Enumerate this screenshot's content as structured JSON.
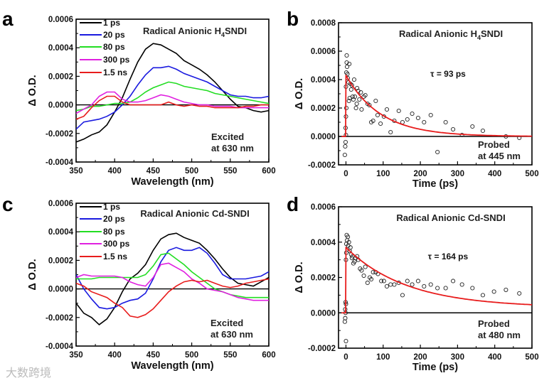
{
  "watermark": "大数跨境",
  "chart_data": [
    {
      "panel": "a",
      "type": "line",
      "title_parts": [
        "Radical Anionic H",
        "4",
        "SNDI"
      ],
      "xlabel": "Wavelength (nm)",
      "ylabel": "Δ O.D.",
      "xlim": [
        350,
        600
      ],
      "ylim": [
        -0.0004,
        0.0006
      ],
      "xticks": [
        "350",
        "400",
        "450",
        "500",
        "550",
        "600"
      ],
      "yticks": [
        "-0.0004",
        "-0.0002",
        "0.0000",
        "0.0002",
        "0.0004",
        "0.0006"
      ],
      "annotation": [
        "Excited",
        "at 630 nm"
      ],
      "legend_placement": "top-left",
      "x": [
        350,
        360,
        370,
        380,
        390,
        400,
        410,
        420,
        430,
        440,
        450,
        460,
        470,
        480,
        490,
        500,
        510,
        520,
        530,
        540,
        550,
        560,
        570,
        580,
        590,
        600
      ],
      "series": [
        {
          "name": "1 ps",
          "color": "#000000",
          "values": [
            -0.00026,
            -0.00024,
            -0.00021,
            -0.00019,
            -0.00014,
            -5e-05,
            5e-05,
            0.00018,
            0.0003,
            0.00039,
            0.00043,
            0.00042,
            0.00039,
            0.00036,
            0.00031,
            0.00028,
            0.00025,
            0.00021,
            0.00016,
            0.0001,
            4e-05,
            -1e-05,
            -2e-05,
            -4e-05,
            -5e-05,
            -4e-05
          ]
        },
        {
          "name": "20 ps",
          "color": "#1a1adf",
          "values": [
            -0.00017,
            -0.00012,
            -0.00011,
            -0.0001,
            -8e-05,
            -5e-05,
            0.0,
            6e-05,
            0.00014,
            0.00021,
            0.00026,
            0.00026,
            0.00027,
            0.00025,
            0.00022,
            0.0002,
            0.00018,
            0.00016,
            0.00013,
            0.0001,
            7e-05,
            6e-05,
            6e-05,
            5e-05,
            5e-05,
            6e-05
          ]
        },
        {
          "name": "80 ps",
          "color": "#22dd22",
          "values": [
            -4e-05,
            -3e-05,
            -1e-05,
            -1e-05,
            0.0,
            1e-05,
            1e-05,
            2e-05,
            5e-05,
            9e-05,
            0.00012,
            0.00014,
            0.00016,
            0.00015,
            0.00013,
            0.00012,
            0.00011,
            0.0001,
            8e-05,
            7e-05,
            6e-05,
            5e-05,
            4e-05,
            3e-05,
            2e-05,
            1e-05
          ]
        },
        {
          "name": "300 ps",
          "color": "#e020e0",
          "values": [
            -6e-05,
            -3e-05,
            0.0,
            6e-05,
            9e-05,
            9e-05,
            4e-05,
            2e-05,
            2e-05,
            3e-05,
            5e-05,
            7e-05,
            6e-05,
            4e-05,
            2e-05,
            1e-05,
            0.0,
            0.0,
            -1e-05,
            -1e-05,
            -1e-05,
            -2e-05,
            -2e-05,
            -2e-05,
            -2e-05,
            -2e-05
          ]
        },
        {
          "name": "1.5 ns",
          "color": "#e81c1c",
          "values": [
            -0.0001,
            -8e-05,
            -2e-05,
            3e-05,
            6e-05,
            6e-05,
            2e-05,
            0.0,
            0.0,
            0.0,
            0.0,
            0.0,
            2e-05,
            0.0,
            -1e-05,
            0.0,
            -1e-05,
            -1e-05,
            -2e-05,
            -2e-05,
            -2e-05,
            -2e-05,
            -1e-05,
            -1e-05,
            0.0,
            0.0
          ]
        }
      ]
    },
    {
      "panel": "b",
      "type": "scatter",
      "title_parts": [
        "Radical Anionic H",
        "4",
        "SNDI"
      ],
      "xlabel": "Time (ps)",
      "ylabel": "Δ O.D.",
      "xlim": [
        -20,
        500
      ],
      "ylim": [
        -0.0002,
        0.0008
      ],
      "xticks": [
        "0",
        "100",
        "200",
        "300",
        "400",
        "500"
      ],
      "yticks": [
        "-0.0002",
        "0.0000",
        "0.0002",
        "0.0004",
        "0.0006",
        "0.0008"
      ],
      "annotation": [
        "Probed",
        "at 445 nm"
      ],
      "tau_label": "τ = 93 ps",
      "fit": {
        "amplitude": 0.00043,
        "tau": 93,
        "offset": 0.0,
        "color": "#e81c1c"
      },
      "points": [
        [
          -3,
          -0.00013
        ],
        [
          -2,
          -7e-05
        ],
        [
          -1,
          -4e-05
        ],
        [
          0,
          1e-05
        ],
        [
          -1,
          6e-05
        ],
        [
          0,
          0.00014
        ],
        [
          1,
          0.0002
        ],
        [
          0,
          0.00035
        ],
        [
          1,
          0.00045
        ],
        [
          2,
          0.00052
        ],
        [
          2,
          0.00057
        ],
        [
          3,
          0.00049
        ],
        [
          4,
          0.00044
        ],
        [
          5,
          0.00041
        ],
        [
          7,
          0.00038
        ],
        [
          9,
          0.00051
        ],
        [
          8,
          0.00025
        ],
        [
          10,
          0.00027
        ],
        [
          12,
          0.00037
        ],
        [
          14,
          0.00033
        ],
        [
          16,
          0.00036
        ],
        [
          18,
          0.00028
        ],
        [
          20,
          0.00026
        ],
        [
          22,
          0.0004
        ],
        [
          24,
          0.00028
        ],
        [
          27,
          0.0002
        ],
        [
          29,
          0.00023
        ],
        [
          30,
          0.00034
        ],
        [
          33,
          0.00032
        ],
        [
          36,
          0.00026
        ],
        [
          40,
          0.00031
        ],
        [
          42,
          0.00019
        ],
        [
          48,
          0.00028
        ],
        [
          52,
          0.00029
        ],
        [
          58,
          0.00023
        ],
        [
          63,
          0.00022
        ],
        [
          68,
          0.0001
        ],
        [
          73,
          0.00011
        ],
        [
          80,
          0.00025
        ],
        [
          85,
          0.00015
        ],
        [
          93,
          9e-05
        ],
        [
          102,
          0.00014
        ],
        [
          110,
          0.00019
        ],
        [
          120,
          3e-05
        ],
        [
          130,
          0.00011
        ],
        [
          142,
          0.00018
        ],
        [
          152,
          0.0001
        ],
        [
          165,
          0.00012
        ],
        [
          178,
          0.00016
        ],
        [
          194,
          0.00013
        ],
        [
          210,
          0.0001
        ],
        [
          228,
          0.00015
        ],
        [
          246,
          -0.00011
        ],
        [
          268,
          0.0001
        ],
        [
          288,
          5e-05
        ],
        [
          312,
          1e-05
        ],
        [
          340,
          7e-05
        ],
        [
          368,
          4e-05
        ],
        [
          430,
          0.0
        ],
        [
          466,
          -1e-05
        ]
      ]
    },
    {
      "panel": "c",
      "type": "line",
      "title_parts": [
        "Radical Anionic Cd-SNDI",
        "",
        ""
      ],
      "xlabel": "Wavelength (nm)",
      "ylabel": "Δ O.D.",
      "xlim": [
        350,
        600
      ],
      "ylim": [
        -0.0004,
        0.0006
      ],
      "xticks": [
        "350",
        "400",
        "450",
        "500",
        "550",
        "600"
      ],
      "yticks": [
        "-0.0004",
        "-0.0002",
        "0.0000",
        "0.0002",
        "0.0004",
        "0.0006"
      ],
      "annotation": [
        "Excited",
        "at 630 nm"
      ],
      "legend_placement": "top-left",
      "x": [
        350,
        360,
        370,
        380,
        390,
        400,
        410,
        420,
        430,
        440,
        450,
        460,
        470,
        480,
        490,
        500,
        510,
        520,
        530,
        540,
        550,
        560,
        570,
        580,
        590,
        600
      ],
      "series": [
        {
          "name": "1 ps",
          "color": "#000000",
          "values": [
            -0.0001,
            -0.00017,
            -0.0002,
            -0.00025,
            -0.00021,
            -0.00013,
            -2e-05,
            7e-05,
            0.00011,
            0.00017,
            0.00027,
            0.00035,
            0.00038,
            0.00039,
            0.00036,
            0.00034,
            0.00032,
            0.00027,
            0.00021,
            0.00014,
            8e-05,
            4e-05,
            3e-05,
            2e-05,
            5e-05,
            8e-05
          ]
        },
        {
          "name": "20 ps",
          "color": "#1a1adf",
          "values": [
            0.0001,
            0.0,
            -7e-05,
            -0.00013,
            -0.00014,
            -0.00013,
            -0.0001,
            -8e-05,
            -7e-05,
            -3e-05,
            7e-05,
            0.00019,
            0.00027,
            0.00029,
            0.00027,
            0.00027,
            0.00029,
            0.00025,
            0.00018,
            0.0001,
            7e-05,
            7e-05,
            7e-05,
            8e-05,
            9e-05,
            0.00012
          ]
        },
        {
          "name": "80 ps",
          "color": "#22dd22",
          "values": [
            7e-05,
            7e-05,
            7e-05,
            8e-05,
            8e-05,
            8e-05,
            8e-05,
            8e-05,
            8e-05,
            0.0001,
            0.00016,
            0.00024,
            0.00025,
            0.00021,
            0.00017,
            0.00012,
            8e-05,
            4e-05,
            0.0,
            -2e-05,
            -4e-05,
            -5e-05,
            -6e-05,
            -6e-05,
            -6e-05,
            -6e-05
          ]
        },
        {
          "name": "300 ps",
          "color": "#e020e0",
          "values": [
            8e-05,
            0.0001,
            9e-05,
            9e-05,
            9e-05,
            9e-05,
            8e-05,
            5e-05,
            3e-05,
            2e-05,
            8e-05,
            0.00017,
            0.00018,
            0.00015,
            0.00012,
            7e-05,
            4e-05,
            0.0,
            -1e-05,
            -2e-05,
            -4e-05,
            -6e-05,
            -7e-05,
            -8e-05,
            -8e-05,
            -8e-05
          ]
        },
        {
          "name": "1.5 ns",
          "color": "#e81c1c",
          "values": [
            4e-05,
            2e-05,
            -2e-05,
            -4e-05,
            -6e-05,
            -0.0001,
            -0.00013,
            -0.00019,
            -0.0002,
            -0.00018,
            -0.00014,
            -8e-05,
            -2e-05,
            2e-05,
            5e-05,
            6e-05,
            5e-05,
            6e-05,
            4e-05,
            2e-05,
            1e-05,
            2e-05,
            4e-05,
            5e-05,
            6e-05,
            7e-05
          ]
        }
      ]
    },
    {
      "panel": "d",
      "type": "scatter",
      "title_parts": [
        "Radical Anionic Cd-SNDI",
        "",
        ""
      ],
      "xlabel": "Time (ps)",
      "ylabel": "Δ O.D.",
      "xlim": [
        -20,
        500
      ],
      "ylim": [
        -0.0002,
        0.0006
      ],
      "xticks": [
        "0",
        "100",
        "200",
        "300",
        "400",
        "500"
      ],
      "yticks": [
        "-0.0002",
        "0.0000",
        "0.0002",
        "0.0004",
        "0.0006"
      ],
      "annotation": [
        "Probed",
        "at 480 nm"
      ],
      "tau_label": "τ = 164 ps",
      "fit": {
        "amplitude": 0.00034,
        "tau": 164,
        "offset": 3e-05,
        "color": "#e81c1c"
      },
      "points": [
        [
          -3,
          -5e-05
        ],
        [
          -2,
          -3e-05
        ],
        [
          -1,
          0.0
        ],
        [
          -2,
          2e-05
        ],
        [
          -1,
          6e-05
        ],
        [
          0,
          -0.00016
        ],
        [
          0,
          5e-05
        ],
        [
          0,
          0.0003
        ],
        [
          1,
          0.00034
        ],
        [
          1,
          0.00039
        ],
        [
          2,
          0.00044
        ],
        [
          3,
          0.00041
        ],
        [
          5,
          0.00043
        ],
        [
          6,
          0.00038
        ],
        [
          8,
          0.0004
        ],
        [
          10,
          0.00035
        ],
        [
          12,
          0.00037
        ],
        [
          14,
          0.00033
        ],
        [
          16,
          0.00031
        ],
        [
          18,
          0.00032
        ],
        [
          20,
          0.00028
        ],
        [
          23,
          0.00029
        ],
        [
          26,
          0.00031
        ],
        [
          30,
          0.00032
        ],
        [
          33,
          0.0003
        ],
        [
          38,
          0.00025
        ],
        [
          42,
          0.00024
        ],
        [
          48,
          0.00021
        ],
        [
          52,
          0.00026
        ],
        [
          58,
          0.00017
        ],
        [
          64,
          0.0002
        ],
        [
          68,
          0.00019
        ],
        [
          73,
          0.00023
        ],
        [
          80,
          0.00023
        ],
        [
          86,
          0.00022
        ],
        [
          95,
          0.00018
        ],
        [
          102,
          0.00018
        ],
        [
          110,
          0.00015
        ],
        [
          120,
          0.00016
        ],
        [
          130,
          0.00016
        ],
        [
          142,
          0.00017
        ],
        [
          152,
          0.0001
        ],
        [
          165,
          0.00018
        ],
        [
          178,
          0.00016
        ],
        [
          194,
          0.00018
        ],
        [
          210,
          0.00015
        ],
        [
          228,
          0.00016
        ],
        [
          246,
          0.00014
        ],
        [
          268,
          0.00014
        ],
        [
          288,
          0.00018
        ],
        [
          312,
          0.00016
        ],
        [
          340,
          0.00014
        ],
        [
          368,
          0.0001
        ],
        [
          398,
          0.00012
        ],
        [
          430,
          0.00013
        ],
        [
          466,
          0.00011
        ]
      ]
    }
  ]
}
